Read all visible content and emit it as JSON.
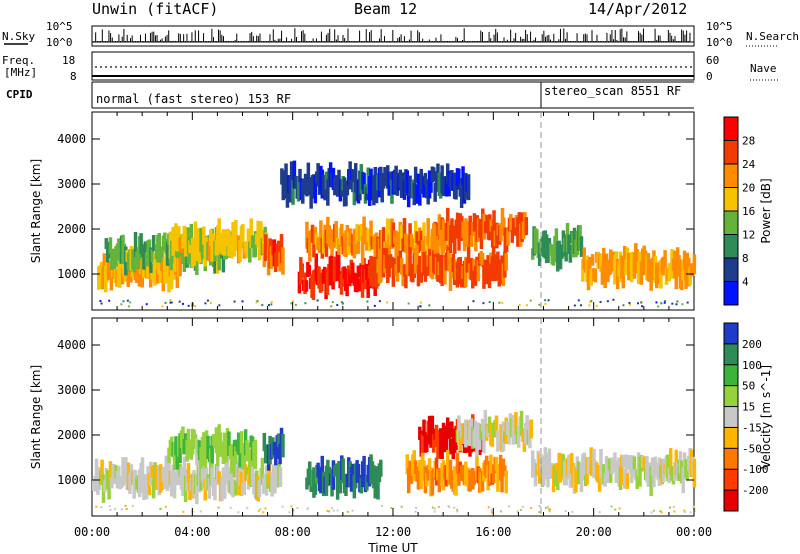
{
  "header": {
    "station": "Unwin (fitACF)",
    "beam": "Beam 12",
    "date": "14/Apr/2012"
  },
  "status_panel": {
    "nsky_label": "N.Sky",
    "nsky_ticks": [
      "10^5",
      "10^0"
    ],
    "nsearch_label": "N.Search",
    "freq_label_1": "Freq.",
    "freq_label_2": "[MHz]",
    "freq_ticks": [
      "18",
      "8"
    ],
    "nave_ticks": [
      "60",
      "0"
    ],
    "nave_label": "Nave",
    "cpid_label": "CPID",
    "cpid_modes": [
      {
        "name": "normal (fast stereo) 153 RF",
        "start_hour": 0,
        "end_hour": 17.9
      },
      {
        "name": "stereo_scan 8551 RF",
        "start_hour": 17.9,
        "end_hour": 24
      }
    ]
  },
  "chart_data": [
    {
      "type": "heatmap",
      "parameter": "Power",
      "ylabel": "Slant Range [km]",
      "yticks": [
        "4000",
        "3000",
        "2000",
        "1000"
      ],
      "ylim": [
        200,
        4600
      ],
      "xlim": [
        0,
        24
      ],
      "colorbar_label": "Power [dB]",
      "colorbar_ticks": [
        "28",
        "24",
        "20",
        "16",
        "12",
        "8",
        "4"
      ],
      "colorbar_colors": [
        "#ff0000",
        "#f23b00",
        "#ff8c00",
        "#f5c300",
        "#64b43c",
        "#2e8b57",
        "#1e3c8c",
        "#0014ff"
      ],
      "features": [
        {
          "start_hour": 0.2,
          "end_hour": 3.5,
          "range_km": 1050,
          "level": 0.62
        },
        {
          "start_hour": 0.5,
          "end_hour": 5.5,
          "range_km": 1500,
          "level": 0.42
        },
        {
          "start_hour": 3.0,
          "end_hour": 7.0,
          "range_km": 1700,
          "level": 0.55
        },
        {
          "start_hour": 6.8,
          "end_hour": 7.6,
          "range_km": 1400,
          "level": 0.86
        },
        {
          "start_hour": 8.2,
          "end_hour": 11.5,
          "range_km": 950,
          "level": 0.95
        },
        {
          "start_hour": 8.5,
          "end_hour": 14.0,
          "range_km": 1750,
          "level": 0.72
        },
        {
          "start_hour": 11.0,
          "end_hour": 16.5,
          "range_km": 1150,
          "level": 0.82
        },
        {
          "start_hour": 13.5,
          "end_hour": 17.3,
          "range_km": 1950,
          "level": 0.8
        },
        {
          "start_hour": 17.5,
          "end_hour": 19.5,
          "range_km": 1600,
          "level": 0.35
        },
        {
          "start_hour": 19.5,
          "end_hour": 24.0,
          "range_km": 1150,
          "level": 0.66
        },
        {
          "start_hour": 7.5,
          "end_hour": 15.0,
          "range_km": 3000,
          "level": 0.12
        }
      ]
    },
    {
      "type": "heatmap",
      "parameter": "Velocity",
      "ylabel": "Slant Range [km]",
      "yticks": [
        "4000",
        "3000",
        "2000",
        "1000"
      ],
      "ylim": [
        200,
        4600
      ],
      "xlim": [
        0,
        24
      ],
      "xticks": [
        "00:00",
        "04:00",
        "08:00",
        "12:00",
        "16:00",
        "20:00",
        "00:00"
      ],
      "xlabel": "Time UT",
      "colorbar_label": "Velocity [m s^-1]",
      "colorbar_ticks": [
        "200",
        "100",
        "50",
        "15",
        "-15",
        "-50",
        "-100",
        "-200"
      ],
      "colorbar_colors": [
        "#1e3cc8",
        "#2e8b57",
        "#3cb43c",
        "#96d23c",
        "#c8c8c8",
        "#ffb400",
        "#ff7800",
        "#ff3c00",
        "#e60000"
      ],
      "features": [
        {
          "start_hour": 0.0,
          "end_hour": 7.5,
          "range_km": 1000,
          "level": 0.5
        },
        {
          "start_hour": 3.0,
          "end_hour": 6.5,
          "range_km": 1700,
          "level": 0.66
        },
        {
          "start_hour": 6.8,
          "end_hour": 7.6,
          "range_km": 1700,
          "level": 0.95
        },
        {
          "start_hour": 8.5,
          "end_hour": 11.5,
          "range_km": 1050,
          "level": 0.92
        },
        {
          "start_hour": 13.0,
          "end_hour": 15.5,
          "range_km": 1950,
          "level": 0.02
        },
        {
          "start_hour": 12.5,
          "end_hour": 16.5,
          "range_km": 1150,
          "level": 0.28
        },
        {
          "start_hour": 14.5,
          "end_hour": 17.5,
          "range_km": 2050,
          "level": 0.5
        },
        {
          "start_hour": 17.5,
          "end_hour": 24.0,
          "range_km": 1200,
          "level": 0.5
        }
      ]
    }
  ]
}
